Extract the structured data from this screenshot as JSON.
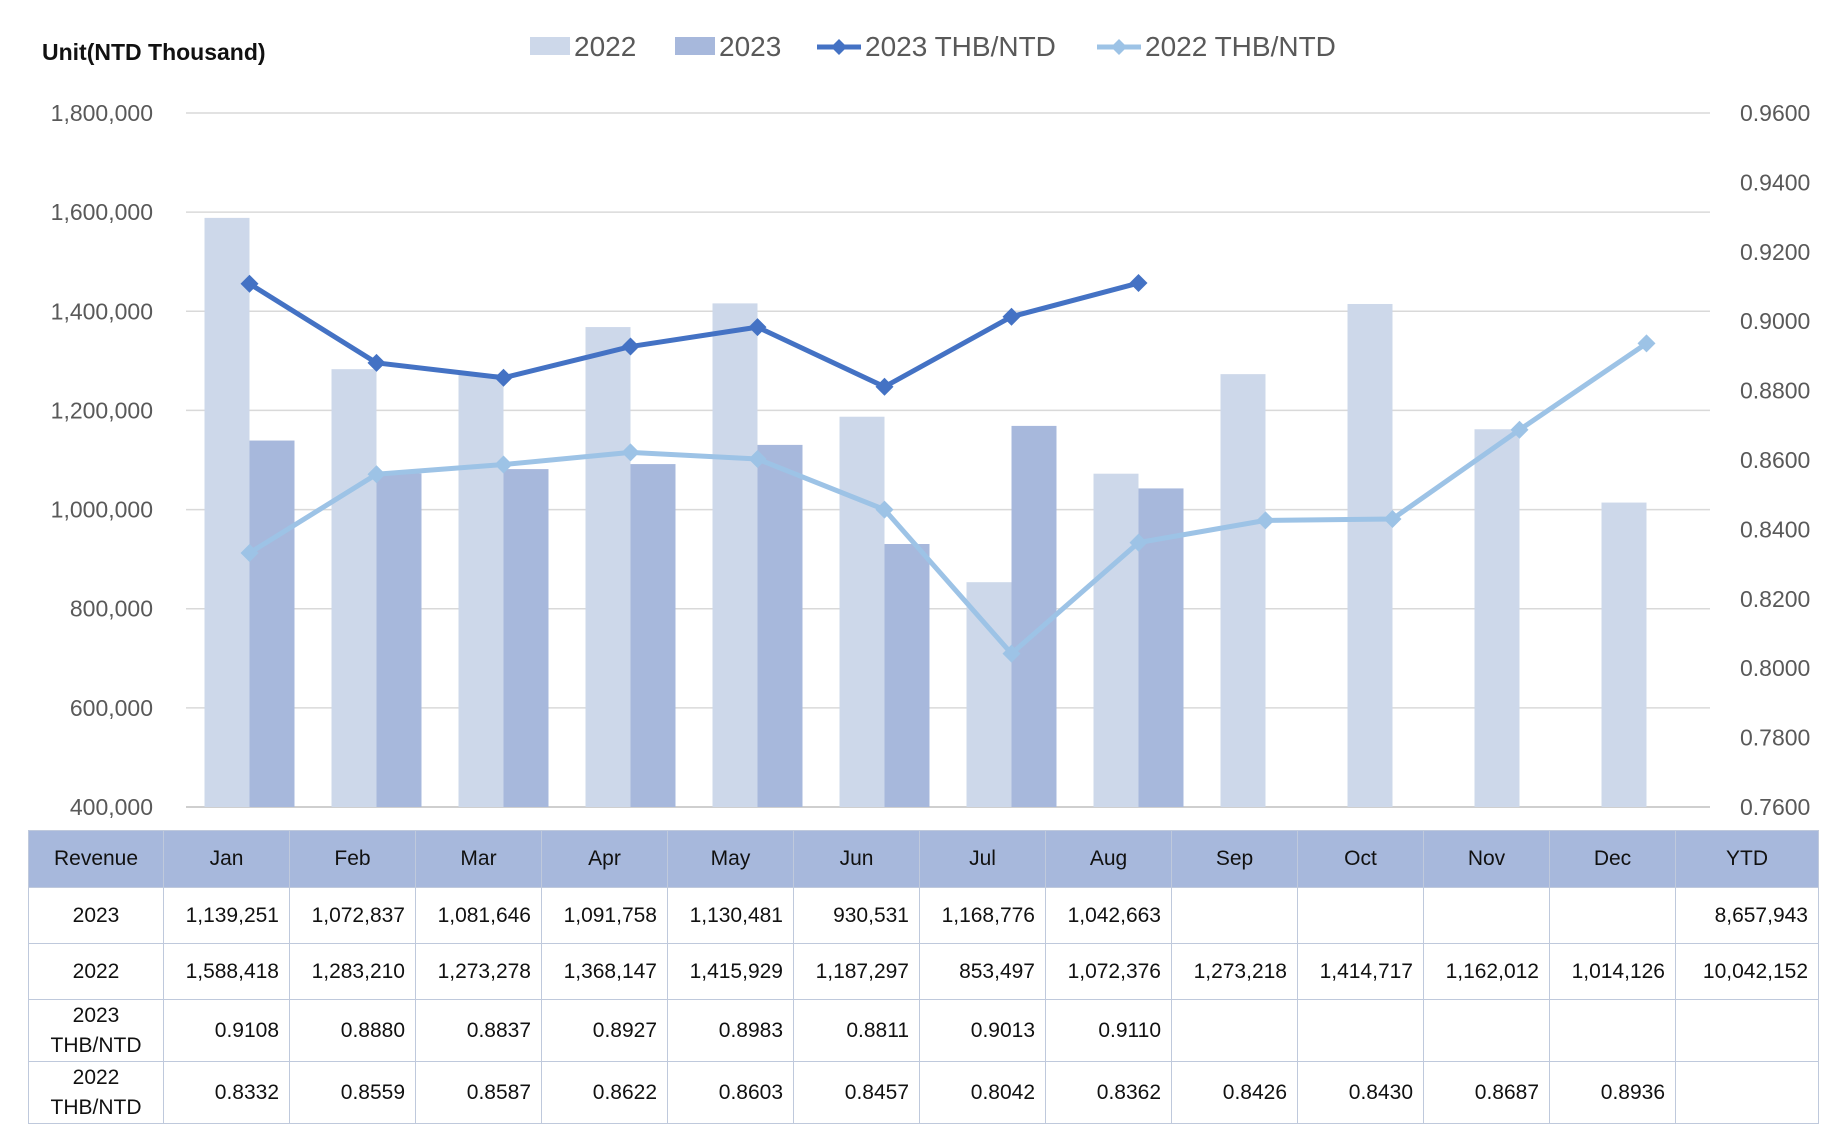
{
  "chart_data": {
    "type": "bar+line",
    "unit_label": "Unit(NTD  Thousand)",
    "categories": [
      "Jan",
      "Feb",
      "Mar",
      "Apr",
      "May",
      "Jun",
      "Jul",
      "Aug",
      "Sep",
      "Oct",
      "Nov",
      "Dec"
    ],
    "bar_series": [
      {
        "name": "2022",
        "color": "#cdd8ea",
        "values": [
          1588418,
          1283210,
          1273278,
          1368147,
          1415929,
          1187297,
          853497,
          1072376,
          1273218,
          1414717,
          1162012,
          1014126
        ]
      },
      {
        "name": "2023",
        "color": "#a7b8dc",
        "values": [
          1139251,
          1072837,
          1081646,
          1091758,
          1130481,
          930531,
          1168776,
          1042663,
          null,
          null,
          null,
          null
        ]
      }
    ],
    "line_series": [
      {
        "name": "2023 THB/NTD",
        "color": "#4472c4",
        "values": [
          0.9108,
          0.888,
          0.8837,
          0.8927,
          0.8983,
          0.8811,
          0.9013,
          0.911,
          null,
          null,
          null,
          null
        ]
      },
      {
        "name": "2022 THB/NTD",
        "color": "#9dc3e6",
        "values": [
          0.8332,
          0.8559,
          0.8587,
          0.8622,
          0.8603,
          0.8457,
          0.8042,
          0.8362,
          0.8426,
          0.843,
          0.8687,
          0.8936
        ]
      }
    ],
    "y_left": {
      "min": 400000,
      "max": 1800000,
      "ticks": [
        "1,800,000",
        "1,600,000",
        "1,400,000",
        "1,200,000",
        "1,000,000",
        "800,000",
        "600,000",
        "400,000"
      ]
    },
    "y_right": {
      "min": 0.76,
      "max": 0.96,
      "ticks": [
        "0.9600",
        "0.9400",
        "0.9200",
        "0.9000",
        "0.8800",
        "0.8600",
        "0.8400",
        "0.8200",
        "0.8000",
        "0.7800",
        "0.7600"
      ]
    },
    "grid": true,
    "legend_placement": "top-center"
  },
  "table": {
    "header": [
      "Revenue",
      "Jan",
      "Feb",
      "Mar",
      "Apr",
      "May",
      "Jun",
      "Jul",
      "Aug",
      "Sep",
      "Oct",
      "Nov",
      "Dec",
      "YTD"
    ],
    "rows": [
      {
        "label": [
          "2023"
        ],
        "cells": [
          "1,139,251",
          "1,072,837",
          "1,081,646",
          "1,091,758",
          "1,130,481",
          "930,531",
          "1,168,776",
          "1,042,663",
          "",
          "",
          "",
          "",
          "8,657,943"
        ]
      },
      {
        "label": [
          "2022"
        ],
        "cells": [
          "1,588,418",
          "1,283,210",
          "1,273,278",
          "1,368,147",
          "1,415,929",
          "1,187,297",
          "853,497",
          "1,072,376",
          "1,273,218",
          "1,414,717",
          "1,162,012",
          "1,014,126",
          "10,042,152"
        ]
      },
      {
        "label": [
          "2023",
          "THB/NTD"
        ],
        "cells": [
          "0.9108",
          "0.8880",
          "0.8837",
          "0.8927",
          "0.8983",
          "0.8811",
          "0.9013",
          "0.9110",
          "",
          "",
          "",
          "",
          ""
        ]
      },
      {
        "label": [
          "2022",
          "THB/NTD"
        ],
        "cells": [
          "0.8332",
          "0.8559",
          "0.8587",
          "0.8622",
          "0.8603",
          "0.8457",
          "0.8042",
          "0.8362",
          "0.8426",
          "0.8430",
          "0.8687",
          "0.8936",
          ""
        ]
      }
    ]
  }
}
